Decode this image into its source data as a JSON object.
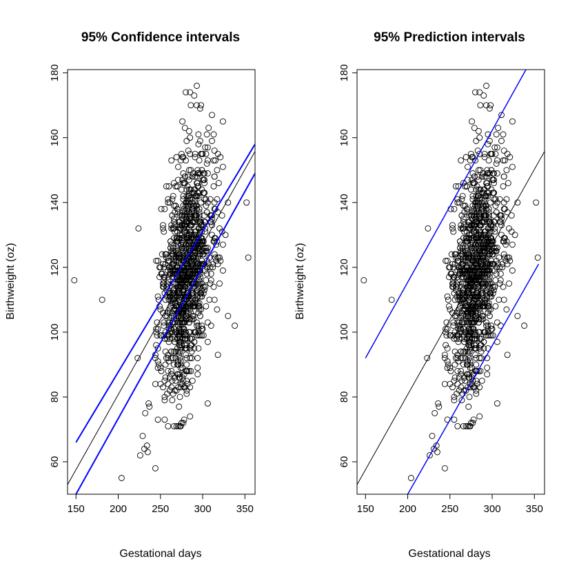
{
  "chart_data": [
    {
      "type": "scatter",
      "title": "95% Confidence intervals",
      "xlabel": "Gestational days",
      "ylabel": "Birthweight (oz)",
      "xlim": [
        140,
        362
      ],
      "ylim": [
        50,
        181
      ],
      "xticks": [
        150,
        200,
        250,
        300,
        350
      ],
      "yticks": [
        60,
        80,
        100,
        120,
        140,
        160,
        180
      ],
      "grid": false,
      "points": {
        "n_total": 1174,
        "outliers": [
          {
            "x": 148,
            "y": 116
          },
          {
            "x": 181,
            "y": 110
          },
          {
            "x": 204,
            "y": 55
          },
          {
            "x": 224,
            "y": 132
          },
          {
            "x": 223,
            "y": 92
          },
          {
            "x": 226,
            "y": 62
          },
          {
            "x": 229,
            "y": 68
          },
          {
            "x": 231,
            "y": 64
          },
          {
            "x": 234,
            "y": 65
          },
          {
            "x": 235,
            "y": 63
          },
          {
            "x": 236,
            "y": 78
          },
          {
            "x": 237,
            "y": 77
          },
          {
            "x": 244,
            "y": 58
          },
          {
            "x": 232,
            "y": 75
          },
          {
            "x": 352,
            "y": 140
          },
          {
            "x": 354,
            "y": 123
          },
          {
            "x": 338,
            "y": 102
          },
          {
            "x": 330,
            "y": 105
          },
          {
            "x": 318,
            "y": 93
          },
          {
            "x": 293,
            "y": 176
          },
          {
            "x": 298,
            "y": 170
          },
          {
            "x": 280,
            "y": 174
          },
          {
            "x": 285,
            "y": 174
          },
          {
            "x": 290,
            "y": 173
          }
        ]
      },
      "fit_line": {
        "intercept": -11.9,
        "slope": 0.4632,
        "color": "#000000"
      },
      "interval_lines": {
        "kind": "confidence",
        "color": "#0000ff",
        "lower": [
          {
            "x": 150,
            "y": 50
          },
          {
            "x": 362,
            "y": 149
          }
        ],
        "upper": [
          {
            "x": 150,
            "y": 66
          },
          {
            "x": 362,
            "y": 158
          }
        ]
      }
    },
    {
      "type": "scatter",
      "title": "95% Prediction intervals",
      "xlabel": "Gestational days",
      "ylabel": "Birthweight (oz)",
      "xlim": [
        140,
        362
      ],
      "ylim": [
        50,
        181
      ],
      "xticks": [
        150,
        200,
        250,
        300,
        350
      ],
      "yticks": [
        60,
        80,
        100,
        120,
        140,
        160,
        180
      ],
      "grid": false,
      "points": {
        "same_as_left_panel": true
      },
      "fit_line": {
        "intercept": -11.9,
        "slope": 0.4632,
        "color": "#000000"
      },
      "interval_lines": {
        "kind": "prediction",
        "color": "#0000ff",
        "lower": [
          {
            "x": 200,
            "y": 50
          },
          {
            "x": 355,
            "y": 121
          }
        ],
        "upper": [
          {
            "x": 150,
            "y": 92
          },
          {
            "x": 340,
            "y": 181
          }
        ]
      }
    }
  ],
  "colors": {
    "points": "#000000",
    "fit": "#000000",
    "interval": "#0000ff"
  }
}
